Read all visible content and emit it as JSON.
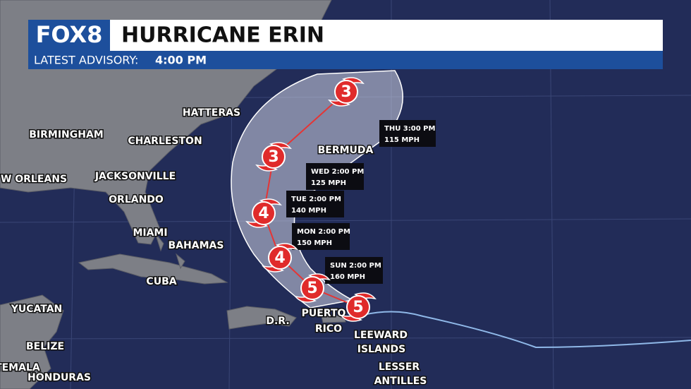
{
  "header": {
    "logo": "FOX8",
    "title": "HURRICANE ERIN",
    "advisory_label": "LATEST ADVISORY:",
    "advisory_time": "4:00 PM"
  },
  "places": [
    "HATTERAS",
    "BIRMINGHAM",
    "CHARLESTON",
    "BERMUDA",
    "W ORLEANS",
    "JACKSONVILLE",
    "ORLANDO",
    "MIAMI",
    "BAHAMAS",
    "CUBA",
    "YUCATAN",
    "BELIZE",
    "ATEMALA",
    "HONDURAS",
    "D.R.",
    "PUERTO",
    "RICO",
    "LEEWARD",
    "ISLANDS",
    "LESSER",
    "ANTILLES"
  ],
  "forecast": [
    {
      "time": "THU 3:00 PM",
      "wind": "115 MPH"
    },
    {
      "time": "WED 2:00 PM",
      "wind": "125 MPH"
    },
    {
      "time": "TUE 2:00 PM",
      "wind": "140 MPH"
    },
    {
      "time": "MON 2:00 PM",
      "wind": "150 MPH"
    },
    {
      "time": "SUN 2:00 PM",
      "wind": "160 MPH"
    }
  ],
  "storm_points": [
    5,
    5,
    4,
    4,
    3,
    3
  ]
}
